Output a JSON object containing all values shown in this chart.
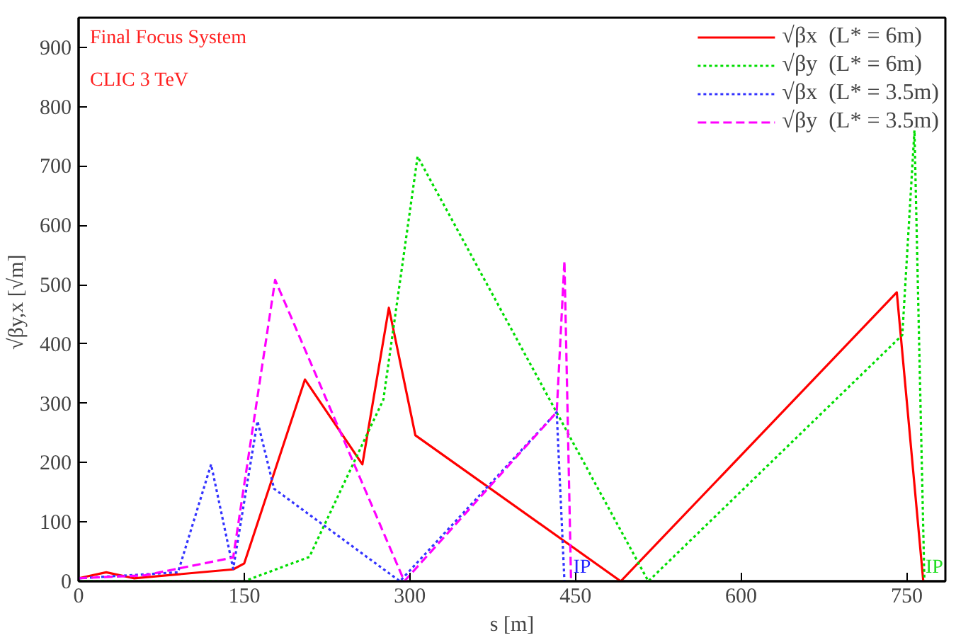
{
  "chart_data": {
    "type": "line",
    "xlabel": "s [m]",
    "ylabel": "√βy,x  [√m]",
    "xlim": [
      0,
      785
    ],
    "ylim": [
      0,
      950
    ],
    "xticks": [
      0,
      150,
      300,
      450,
      600,
      750
    ],
    "yticks": [
      0,
      100,
      200,
      300,
      400,
      500,
      600,
      700,
      800,
      900
    ],
    "grid": false,
    "legend": "top right",
    "annotations": [
      "Final Focus System",
      "CLIC 3 TeV",
      {
        "text": "IP",
        "x": 448,
        "y": 0
      },
      {
        "text": "IP",
        "x": 767,
        "y": 0
      }
    ],
    "series": [
      {
        "name": "√βx  (L* = 6m)",
        "color": "#ff0000",
        "line_style": "solid",
        "x": [
          0,
          25,
          50,
          140,
          150,
          205,
          257,
          281,
          305,
          491,
          741,
          765
        ],
        "values": [
          5,
          15,
          5,
          20,
          30,
          340,
          197,
          461,
          246,
          0,
          487,
          0
        ]
      },
      {
        "name": "√βy  (L* = 6m)",
        "color": "#00dd00",
        "line_style": "dotted",
        "x": [
          0,
          150,
          209,
          276,
          307,
          516,
          746,
          757,
          766
        ],
        "values": [
          0,
          0,
          41,
          306,
          716,
          0,
          415,
          760,
          0
        ]
      },
      {
        "name": "√βx  (L* = 3.5m)",
        "color": "#3333ff",
        "line_style": "dotted",
        "x": [
          0,
          90,
          120,
          140,
          162,
          177,
          291,
          433,
          440
        ],
        "values": [
          5,
          15,
          197,
          21,
          270,
          156,
          0,
          285,
          0
        ]
      },
      {
        "name": "√βy  (L* = 3.5m)",
        "color": "#ff00ff",
        "line_style": "dashed",
        "x": [
          0,
          60,
          140,
          178,
          295,
          433,
          440,
          446
        ],
        "values": [
          5,
          10,
          40,
          508,
          0,
          285,
          540,
          0
        ]
      }
    ]
  }
}
